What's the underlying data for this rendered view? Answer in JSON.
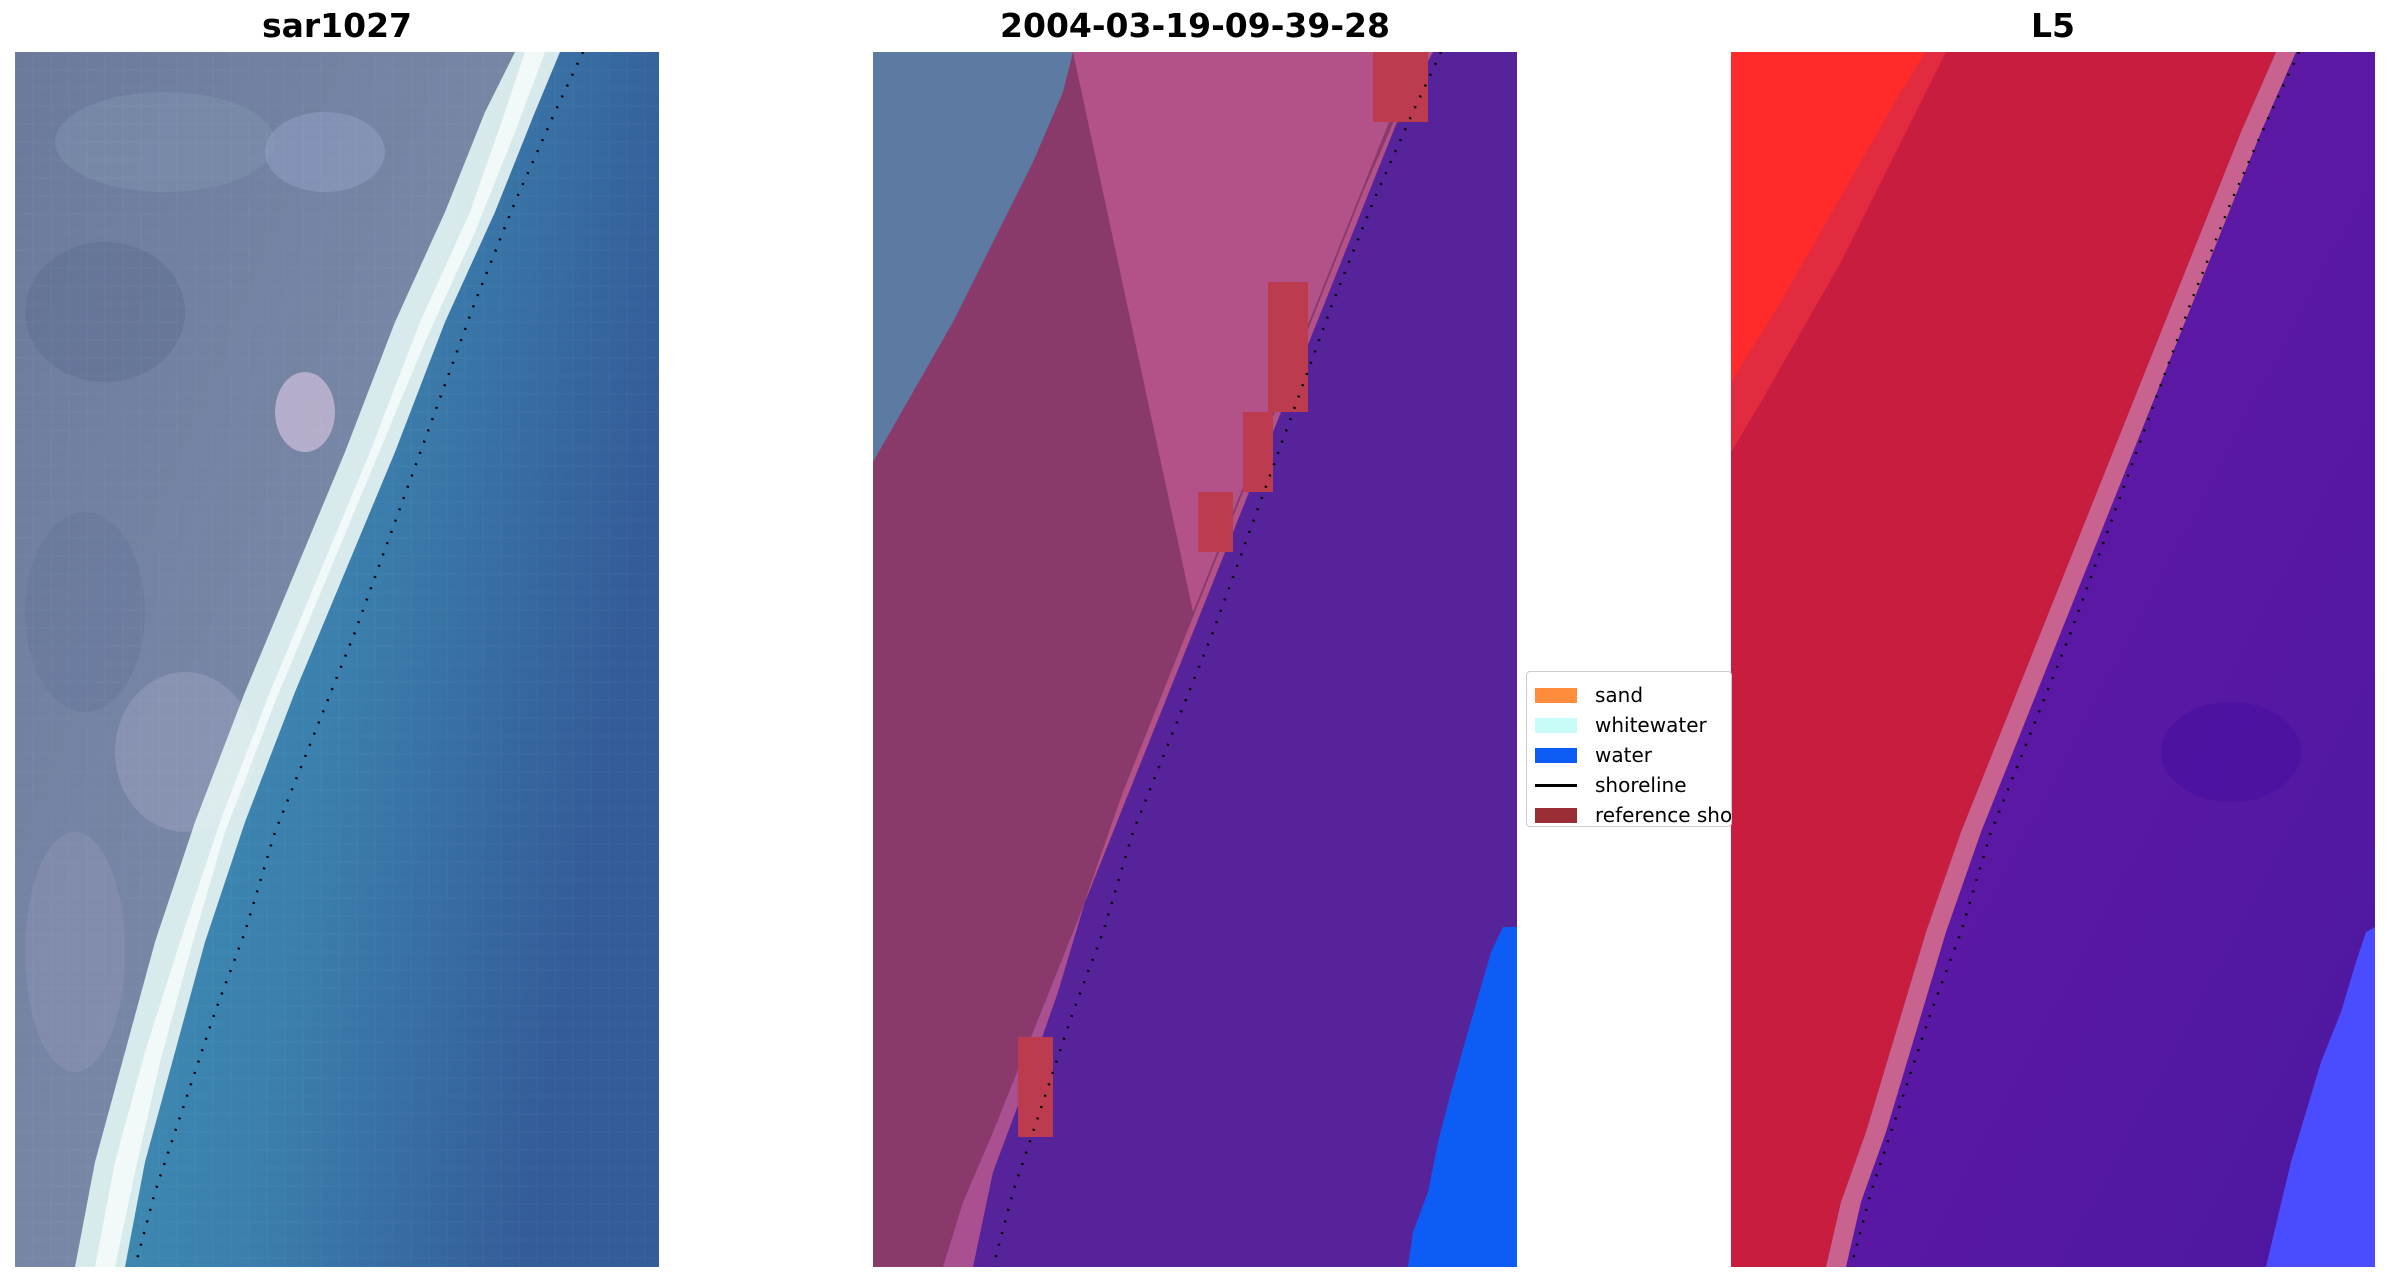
{
  "panels": {
    "left_title": "sar1027",
    "middle_title": "2004-03-19-09-39-28",
    "right_title": "L5"
  },
  "legend": {
    "items": [
      {
        "label": "sand",
        "color": "#ff8c3a",
        "kind": "patch"
      },
      {
        "label": "whitewater",
        "color": "#c8fcf8",
        "kind": "patch"
      },
      {
        "label": "water",
        "color": "#0d5cf5",
        "kind": "patch"
      },
      {
        "label": "shoreline",
        "color": "#000000",
        "kind": "line"
      },
      {
        "label": "reference shoreline",
        "color": "#9a2e36",
        "kind": "patch"
      }
    ]
  },
  "colors": {
    "land_rgb": "#6f7f9f",
    "surf": "#e8f6f4",
    "ocean_rgb": "#3a82ad",
    "class_land": "#8a3a6a",
    "class_beach": "#b9578d",
    "class_water": "#56239a",
    "class_blue": "#0d5cf5",
    "ref_red": "#bd3b4e",
    "l5_land": "#c81d3e",
    "l5_bright": "#ff1a1a",
    "l5_water": "#5a18a0",
    "l5_blue": "#4a4cff"
  }
}
